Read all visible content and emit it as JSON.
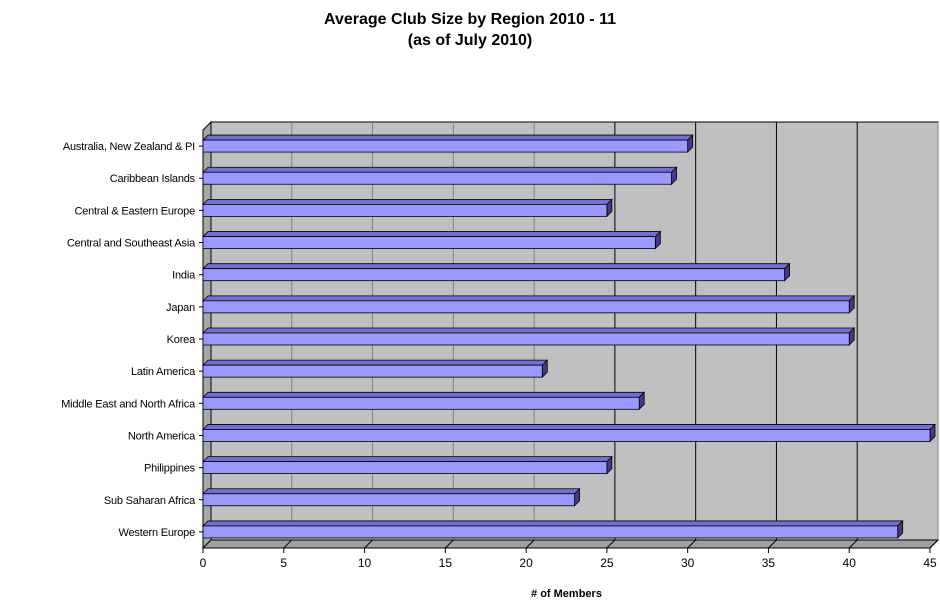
{
  "chart_data": {
    "type": "bar",
    "orientation": "horizontal",
    "title": "Average Club Size by Region 2010 - 11",
    "subtitle": "(as of July 2010)",
    "xlabel": "# of Members",
    "ylabel": "",
    "xlim": [
      0,
      45
    ],
    "xticks": [
      "0",
      "5",
      "10",
      "15",
      "20",
      "25",
      "30",
      "35",
      "40",
      "45"
    ],
    "grid": true,
    "legend": "none",
    "categories": [
      "Australia, New Zealand & PI",
      "Caribbean Islands",
      "Central & Eastern Europe",
      "Central and Southeast Asia",
      "India",
      "Japan",
      "Korea",
      "Latin America",
      "Middle East and North Africa",
      "North America",
      "Philippines",
      "Sub Saharan Africa",
      "Western Europe"
    ],
    "values": [
      30,
      29,
      25,
      28,
      36,
      40,
      40,
      21,
      27,
      45,
      25,
      23,
      43
    ],
    "colors": {
      "bar": "#9999ff",
      "bar_side": "#3c3c8c",
      "plot_bg": "#c0c0c0",
      "grid": "#808080"
    }
  }
}
